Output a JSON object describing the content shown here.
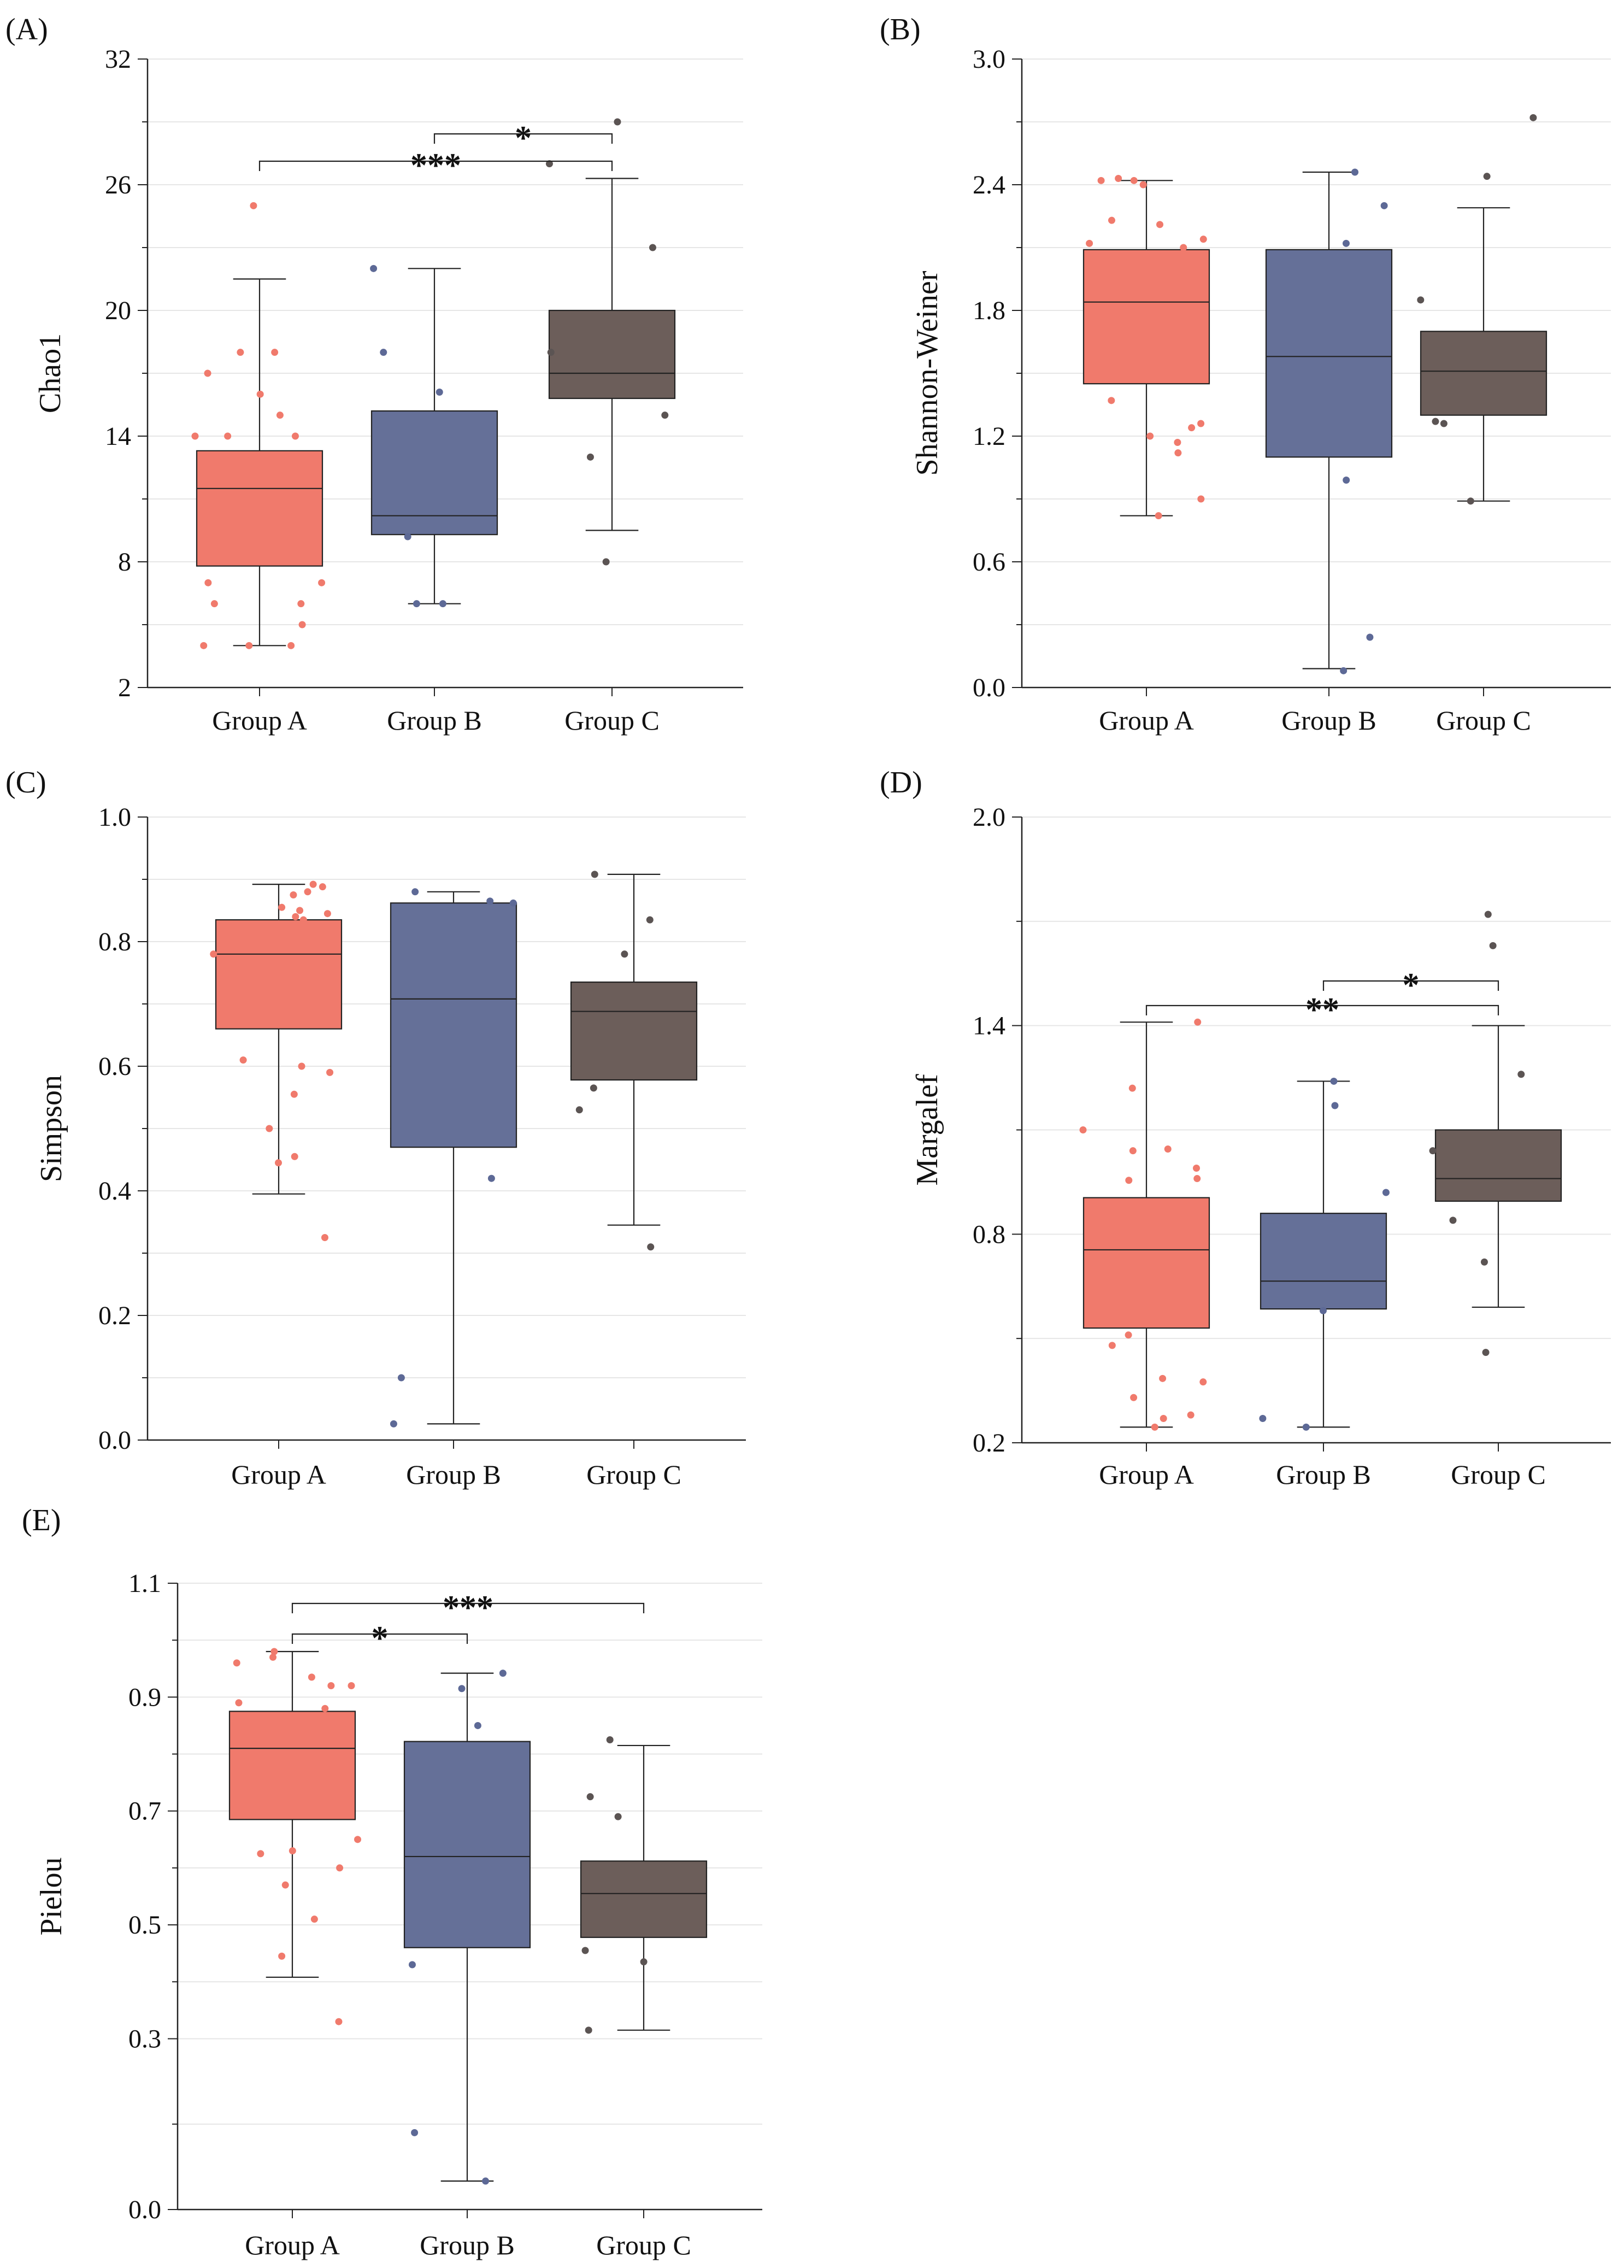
{
  "chart_data": [
    {
      "type": "box",
      "panel_label": "(A)",
      "ylabel": "Chao1",
      "categories": [
        "Group A",
        "Group B",
        "Group C"
      ],
      "ylim": [
        2,
        32
      ],
      "yticks": [
        2,
        8,
        14,
        20,
        26,
        32
      ],
      "tick_labels": [
        "2",
        "8",
        "14",
        "20",
        "26",
        "32"
      ],
      "boxes": [
        {
          "name": "Group A",
          "min": 4,
          "q1": 7.8,
          "median": 11.5,
          "mean": 11.5,
          "q3": 13.3,
          "max": 21.5,
          "points": [
            4,
            4,
            4,
            5,
            6,
            6,
            7,
            7,
            8,
            14,
            14,
            14,
            15,
            16,
            17,
            18,
            18,
            25
          ]
        },
        {
          "name": "Group B",
          "min": 6,
          "q1": 9.3,
          "median": 10.2,
          "mean": 10.2,
          "q3": 15.2,
          "max": 22,
          "points": [
            6,
            6,
            9.2,
            16.1,
            18,
            22
          ]
        },
        {
          "name": "Group C",
          "min": 9.5,
          "q1": 15.8,
          "median": 17,
          "mean": 17,
          "q3": 20,
          "max": 26.3,
          "points": [
            8,
            13,
            15,
            18,
            23,
            27,
            29
          ]
        }
      ],
      "significance": [
        {
          "from": "Group A",
          "to": "Group C",
          "label": "***"
        },
        {
          "from": "Group B",
          "to": "Group C",
          "label": "*"
        }
      ]
    },
    {
      "type": "box",
      "panel_label": "(B)",
      "ylabel": "Shannon-Weiner",
      "categories": [
        "Group A",
        "Group B",
        "Group C"
      ],
      "ylim": [
        0,
        3
      ],
      "yticks": [
        0,
        0.6,
        1.2,
        1.8,
        2.4,
        3.0
      ],
      "tick_labels": [
        "0.0",
        "0.6",
        "1.2",
        "1.8",
        "2.4",
        "3.0"
      ],
      "boxes": [
        {
          "name": "Group A",
          "min": 0.82,
          "q1": 1.45,
          "median": 1.84,
          "mean": 1.84,
          "q3": 2.09,
          "max": 2.42,
          "points": [
            0.82,
            0.9,
            1.12,
            1.17,
            1.2,
            1.24,
            1.26,
            1.37,
            1.86,
            2.02,
            2.06,
            2.1,
            2.12,
            2.14,
            2.21,
            2.23,
            2.4,
            2.42,
            2.42,
            2.43
          ]
        },
        {
          "name": "Group B",
          "min": 0.09,
          "q1": 1.1,
          "median": 1.58,
          "mean": 1.58,
          "q3": 2.09,
          "max": 2.46,
          "points": [
            0.08,
            0.24,
            0.99,
            2.12,
            2.3,
            2.46
          ]
        },
        {
          "name": "Group C",
          "min": 0.89,
          "q1": 1.3,
          "median": 1.51,
          "mean": 1.51,
          "q3": 1.7,
          "max": 2.29,
          "points": [
            0.89,
            1.26,
            1.27,
            1.85,
            2.44,
            2.72
          ]
        }
      ],
      "significance": []
    },
    {
      "type": "box",
      "panel_label": "(C)",
      "ylabel": "Simpson",
      "categories": [
        "Group A",
        "Group B",
        "Group C"
      ],
      "ylim": [
        0,
        1
      ],
      "yticks": [
        0,
        0.2,
        0.4,
        0.6,
        0.8,
        1.0
      ],
      "tick_labels": [
        "0.0",
        "0.2",
        "0.4",
        "0.6",
        "0.8",
        "1.0"
      ],
      "boxes": [
        {
          "name": "Group A",
          "min": 0.395,
          "q1": 0.66,
          "median": 0.78,
          "mean": 0.78,
          "q3": 0.835,
          "max": 0.892,
          "points": [
            0.325,
            0.445,
            0.455,
            0.5,
            0.555,
            0.59,
            0.6,
            0.61,
            0.78,
            0.835,
            0.84,
            0.845,
            0.85,
            0.855,
            0.875,
            0.88,
            0.888,
            0.892
          ]
        },
        {
          "name": "Group B",
          "min": 0.026,
          "q1": 0.47,
          "median": 0.708,
          "mean": 0.708,
          "q3": 0.862,
          "max": 0.88,
          "points": [
            0.026,
            0.1,
            0.42,
            0.862,
            0.865,
            0.88
          ]
        },
        {
          "name": "Group C",
          "min": 0.345,
          "q1": 0.578,
          "median": 0.688,
          "mean": 0.688,
          "q3": 0.735,
          "max": 0.908,
          "points": [
            0.31,
            0.53,
            0.565,
            0.78,
            0.835,
            0.908
          ]
        }
      ],
      "significance": []
    },
    {
      "type": "box",
      "panel_label": "(D)",
      "ylabel": "Margalef",
      "categories": [
        "Group A",
        "Group B",
        "Group C"
      ],
      "ylim": [
        0.2,
        2.0
      ],
      "yticks": [
        0.2,
        0.8,
        1.4,
        2.0
      ],
      "tick_labels": [
        "0.2",
        "0.8",
        "1.4",
        "2.0"
      ],
      "boxes": [
        {
          "name": "Group A",
          "min": 0.245,
          "q1": 0.53,
          "median": 0.755,
          "mean": 0.755,
          "q3": 0.905,
          "max": 1.41,
          "points": [
            0.245,
            0.27,
            0.28,
            0.33,
            0.375,
            0.385,
            0.48,
            0.51,
            0.955,
            0.96,
            0.99,
            1.04,
            1.045,
            1.1,
            1.22,
            1.41
          ]
        },
        {
          "name": "Group B",
          "min": 0.245,
          "q1": 0.585,
          "median": 0.665,
          "mean": 0.665,
          "q3": 0.86,
          "max": 1.24,
          "points": [
            0.245,
            0.27,
            0.58,
            0.92,
            1.17,
            1.24
          ]
        },
        {
          "name": "Group C",
          "min": 0.59,
          "q1": 0.895,
          "median": 0.96,
          "mean": 0.96,
          "q3": 1.1,
          "max": 1.4,
          "points": [
            0.46,
            0.72,
            0.84,
            1.04,
            1.26,
            1.63,
            1.72
          ]
        }
      ],
      "significance": [
        {
          "from": "Group A",
          "to": "Group C",
          "label": "**"
        },
        {
          "from": "Group B",
          "to": "Group C",
          "label": "*"
        }
      ]
    },
    {
      "type": "box",
      "panel_label": "(E)",
      "ylabel": "Pielou",
      "categories": [
        "Group A",
        "Group B",
        "Group C"
      ],
      "ylim": [
        0,
        1.1
      ],
      "yticks": [
        0,
        0.3,
        0.5,
        0.7,
        0.9,
        1.1
      ],
      "tick_labels": [
        "0.0",
        "0.3",
        "0.5",
        "0.7",
        "0.9",
        "1.1"
      ],
      "boxes": [
        {
          "name": "Group A",
          "min": 0.408,
          "q1": 0.685,
          "median": 0.81,
          "mean": 0.81,
          "q3": 0.875,
          "max": 0.98,
          "points": [
            0.33,
            0.445,
            0.51,
            0.57,
            0.6,
            0.625,
            0.63,
            0.65,
            0.88,
            0.89,
            0.92,
            0.92,
            0.935,
            0.96,
            0.97,
            0.98
          ]
        },
        {
          "name": "Group B",
          "min": 0.05,
          "q1": 0.46,
          "median": 0.62,
          "mean": 0.62,
          "q3": 0.822,
          "max": 0.942,
          "points": [
            0.05,
            0.135,
            0.43,
            0.85,
            0.915,
            0.942
          ]
        },
        {
          "name": "Group C",
          "min": 0.315,
          "q1": 0.478,
          "median": 0.555,
          "mean": 0.555,
          "q3": 0.612,
          "max": 0.815,
          "points": [
            0.315,
            0.435,
            0.455,
            0.69,
            0.725,
            0.825
          ]
        }
      ],
      "significance": [
        {
          "from": "Group A",
          "to": "Group B",
          "label": "*"
        },
        {
          "from": "Group A",
          "to": "Group C",
          "label": "***"
        }
      ]
    }
  ],
  "colors": {
    "group_a": "#F07A6C",
    "group_b": "#657098",
    "group_c": "#6C5E5A",
    "point_a": "#F07A6C",
    "point_b": "#5D6996",
    "point_c": "#5B5453",
    "grid": "#E6E6E6",
    "axis": "#222222"
  }
}
